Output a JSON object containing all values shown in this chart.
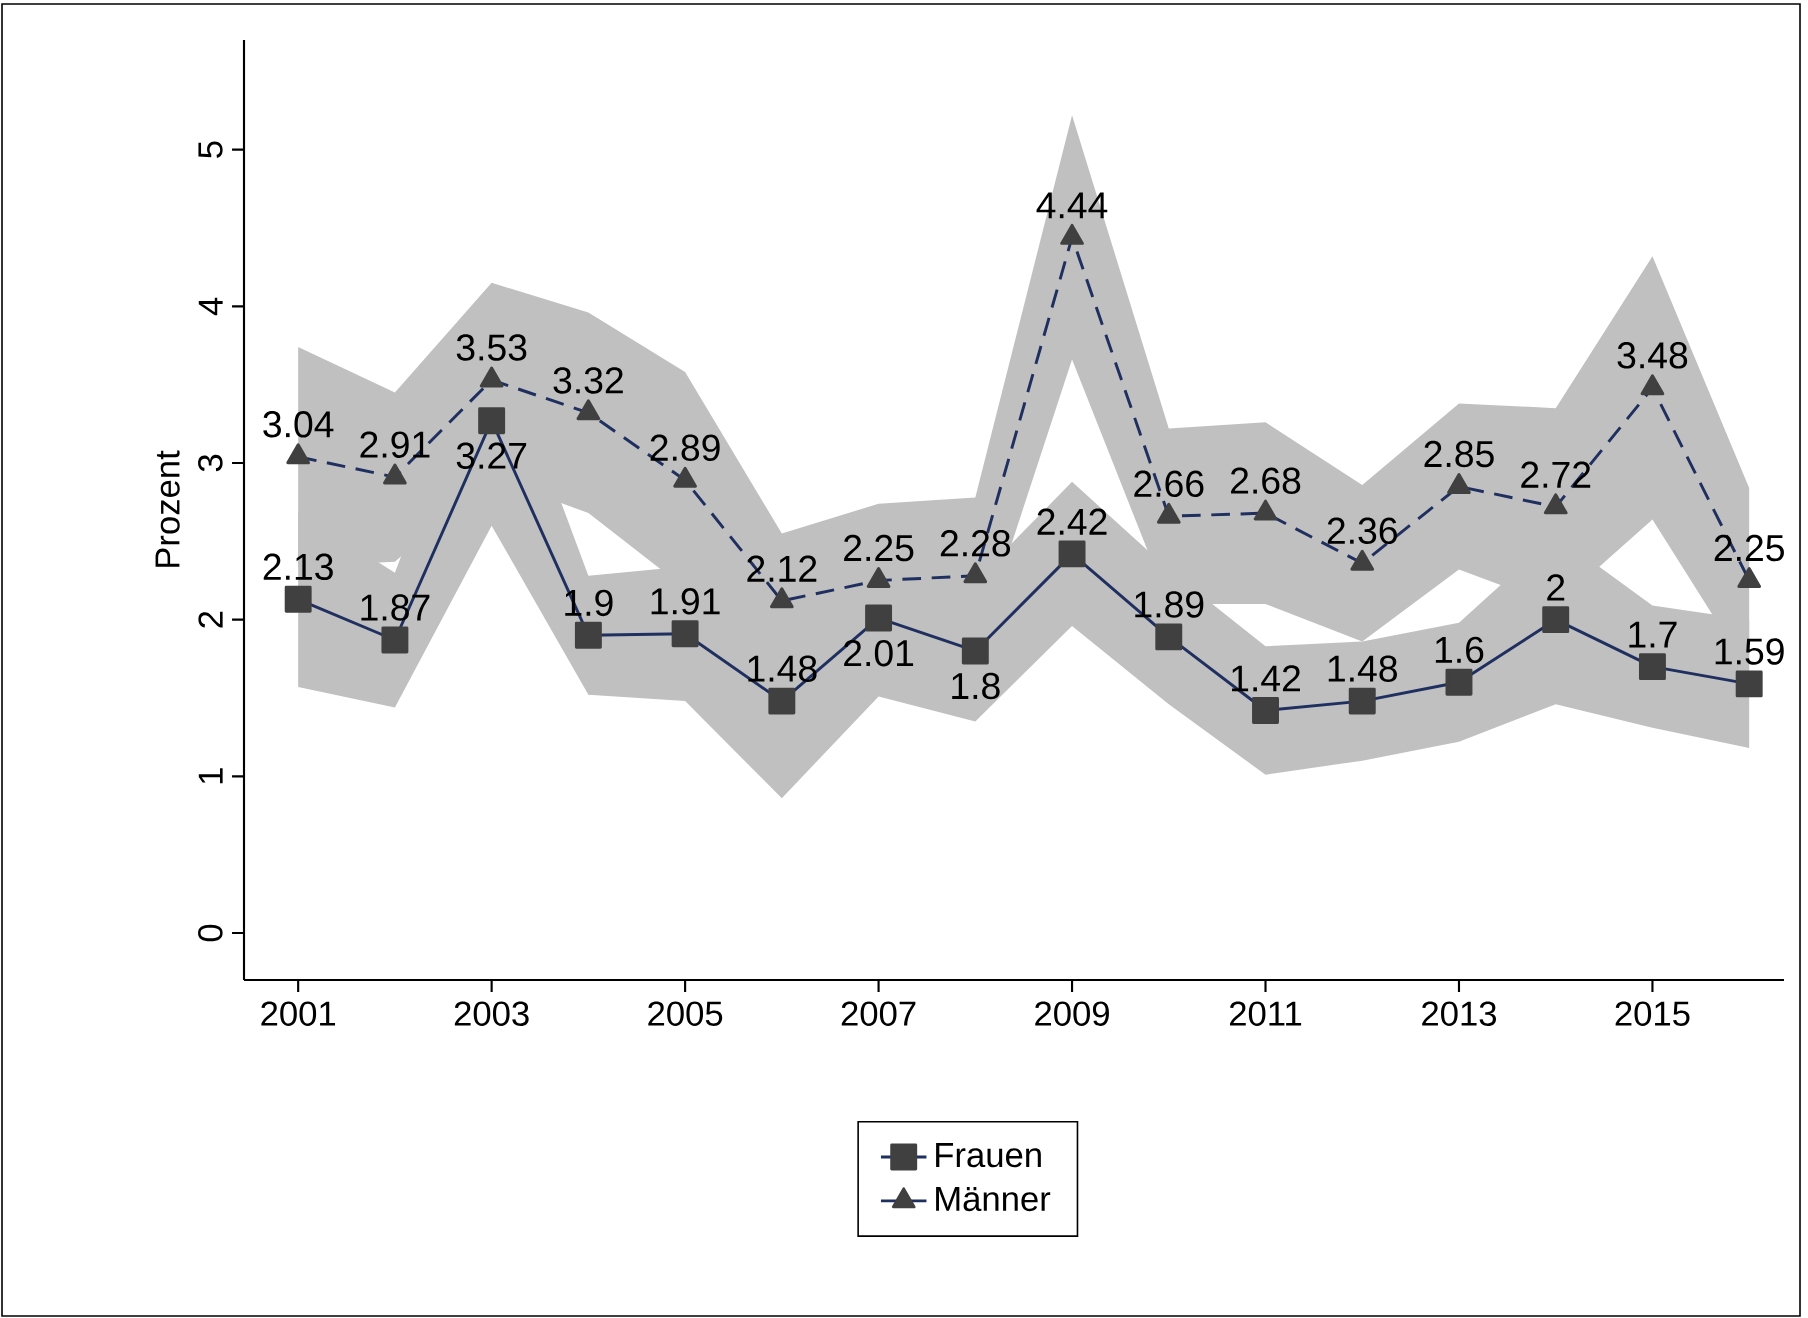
{
  "chart_data": {
    "type": "line",
    "ylabel": "Prozent",
    "x": [
      2001,
      2002,
      2003,
      2004,
      2005,
      2006,
      2007,
      2008,
      2009,
      2010,
      2011,
      2012,
      2013,
      2014,
      2015,
      2016
    ],
    "series": [
      {
        "name": "Frauen",
        "color": "#1f2f5f",
        "marker": "square",
        "line_style": "solid",
        "values": [
          2.13,
          1.87,
          3.27,
          1.9,
          1.91,
          1.48,
          2.01,
          1.8,
          2.42,
          1.89,
          1.42,
          1.48,
          1.6,
          2,
          1.7,
          1.59
        ],
        "lower": [
          1.57,
          1.44,
          2.6,
          1.52,
          1.48,
          0.86,
          1.51,
          1.35,
          1.96,
          1.46,
          1.01,
          1.1,
          1.22,
          1.46,
          1.31,
          1.18
        ],
        "upper": [
          2.69,
          2.3,
          3.94,
          2.28,
          2.34,
          2.1,
          2.51,
          2.25,
          2.88,
          2.32,
          1.83,
          1.86,
          1.98,
          2.54,
          2.09,
          2.0
        ]
      },
      {
        "name": "Männer",
        "color": "#1f2f5f",
        "marker": "triangle",
        "line_style": "dashed",
        "values": [
          3.04,
          2.91,
          3.53,
          3.32,
          2.89,
          2.12,
          2.25,
          2.28,
          4.44,
          2.66,
          2.68,
          2.36,
          2.85,
          2.72,
          3.48,
          2.25
        ],
        "lower": [
          2.34,
          2.37,
          2.91,
          2.68,
          2.2,
          1.69,
          1.76,
          1.78,
          3.66,
          2.1,
          2.1,
          1.86,
          2.32,
          2.09,
          2.64,
          1.66
        ],
        "upper": [
          3.74,
          3.45,
          4.15,
          3.96,
          3.58,
          2.55,
          2.74,
          2.78,
          5.22,
          3.22,
          3.26,
          2.86,
          3.38,
          3.35,
          4.32,
          2.84
        ]
      }
    ],
    "xlim": [
      2000.44,
      2016.36
    ],
    "ylim": [
      -0.3,
      5.7
    ],
    "xticks": [
      2001,
      2003,
      2005,
      2007,
      2009,
      2011,
      2013,
      2015
    ],
    "yticks": [
      0,
      1,
      2,
      3,
      4,
      5
    ],
    "data_labels": true,
    "grid": false,
    "legend": "bottom"
  }
}
